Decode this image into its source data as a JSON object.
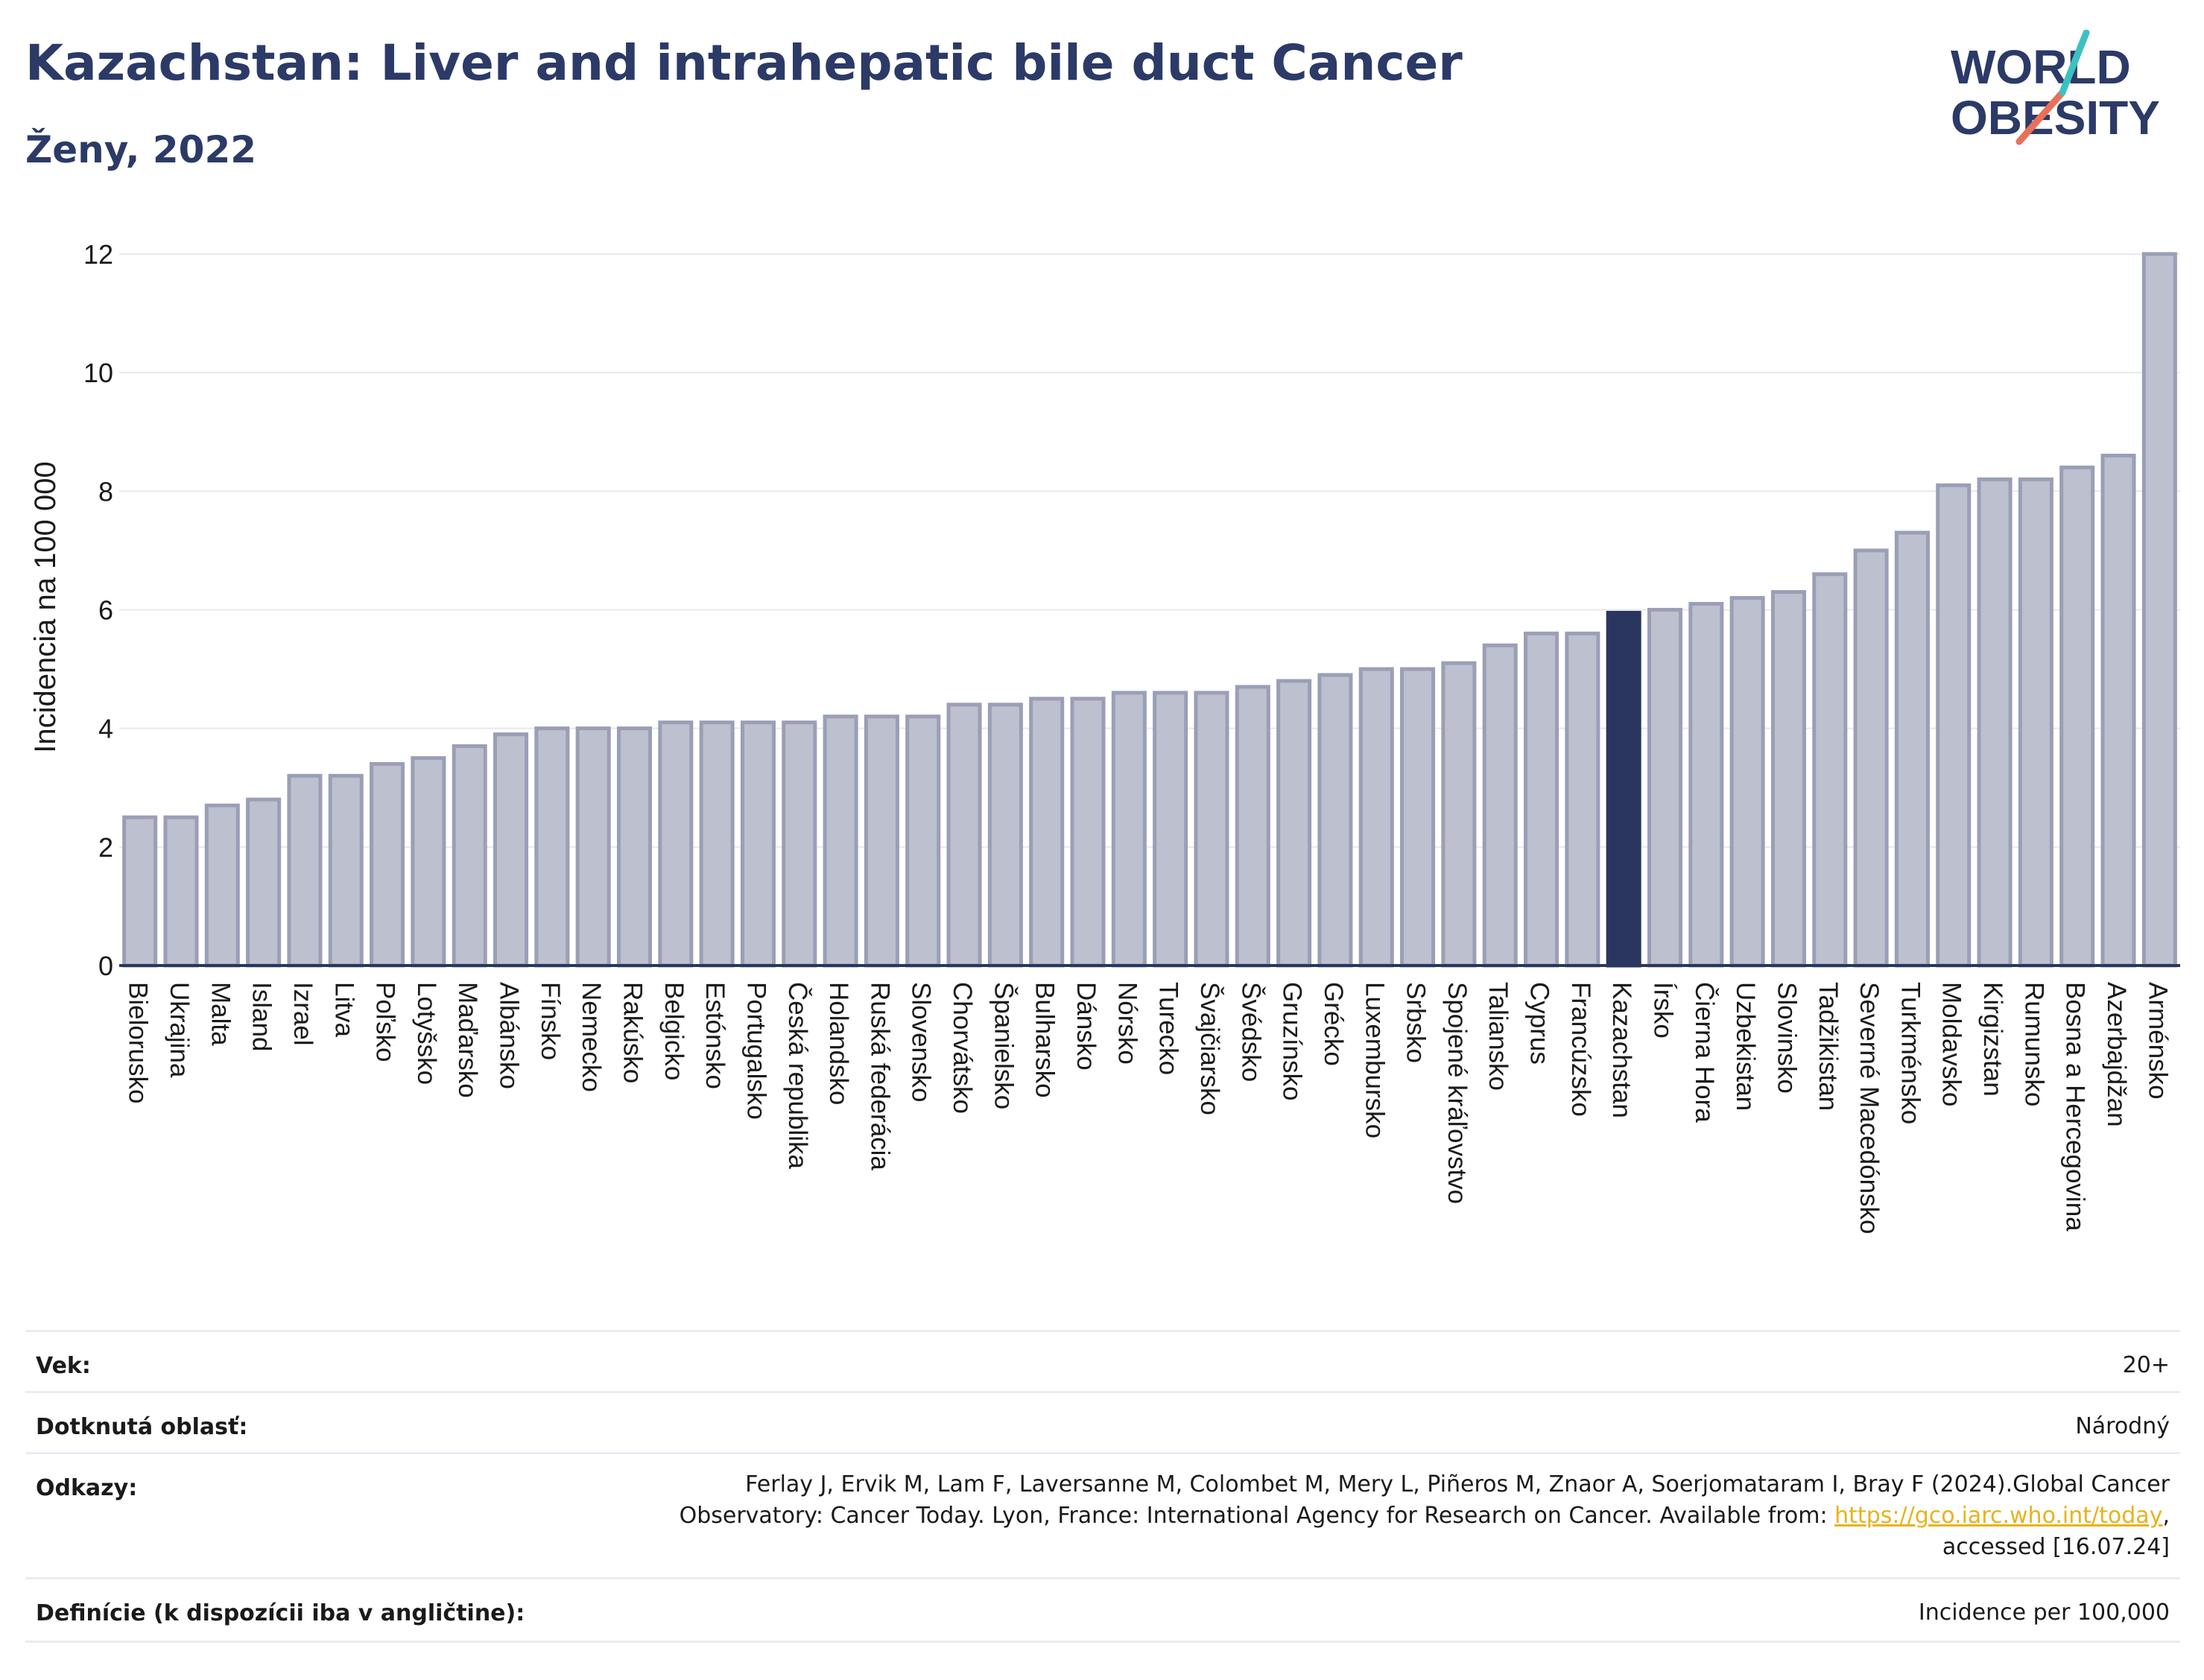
{
  "header": {
    "title": "Kazachstan: Liver and intrahepatic bile duct Cancer",
    "subtitle": "Ženy, 2022"
  },
  "logo": {
    "line1": "WORLD",
    "line2": "OBESITY",
    "accent_colors": [
      "#3cc1c1",
      "#e8705a"
    ],
    "text_color": "#2b3a67"
  },
  "chart_data": {
    "type": "bar",
    "title": "Kazachstan: Liver and intrahepatic bile duct Cancer",
    "subtitle": "Ženy, 2022",
    "ylabel": "Incidencia na 100 000",
    "xlabel": "",
    "ylim": [
      0,
      12.2
    ],
    "yticks": [
      0,
      2,
      4,
      6,
      8,
      10,
      12
    ],
    "grid": true,
    "highlight": "Kazachstan",
    "colors": {
      "bar": "#bcc0cf",
      "bar_edge": "#9a9fb6",
      "highlight": "#2b3660",
      "axis": "#2b3660"
    },
    "categories": [
      "Bielorusko",
      "Ukrajina",
      "Malta",
      "Island",
      "Izrael",
      "Litva",
      "Poľsko",
      "Lotyšsko",
      "Maďarsko",
      "Albánsko",
      "Fínsko",
      "Nemecko",
      "Rakúsko",
      "Belgicko",
      "Estónsko",
      "Portugalsko",
      "Česká republika",
      "Holandsko",
      "Ruská federácia",
      "Slovensko",
      "Chorvátsko",
      "Španielsko",
      "Bulharsko",
      "Dánsko",
      "Nórsko",
      "Turecko",
      "Švajčiarsko",
      "Švédsko",
      "Gruzínsko",
      "Grécko",
      "Luxembursko",
      "Srbsko",
      "Spojené kráľovstvo",
      "Taliansko",
      "Cyprus",
      "Francúzsko",
      "Kazachstan",
      "Írsko",
      "Čierna Hora",
      "Uzbekistan",
      "Slovinsko",
      "Tadžikistan",
      "Severné Macedónsko",
      "Turkménsko",
      "Moldavsko",
      "Kirgizstan",
      "Rumunsko",
      "Bosna a Hercegovina",
      "Azerbajdžan",
      "Arménsko"
    ],
    "values": [
      2.5,
      2.5,
      2.7,
      2.8,
      3.2,
      3.2,
      3.4,
      3.5,
      3.7,
      3.9,
      4.0,
      4.0,
      4.0,
      4.1,
      4.1,
      4.1,
      4.1,
      4.2,
      4.2,
      4.2,
      4.4,
      4.4,
      4.5,
      4.5,
      4.6,
      4.6,
      4.6,
      4.7,
      4.8,
      4.9,
      5.0,
      5.0,
      5.1,
      5.4,
      5.6,
      5.6,
      5.95,
      6.0,
      6.1,
      6.2,
      6.3,
      6.6,
      7.0,
      7.3,
      8.1,
      8.2,
      8.2,
      8.4,
      8.6,
      12.0
    ]
  },
  "meta": {
    "age_label": "Vek:",
    "age_value": "20+",
    "area_label": "Dotknutá oblasť:",
    "area_value": "Národný",
    "refs_label": "Odkazy:",
    "refs_line1": "Ferlay J, Ervik M, Lam F, Laversanne M, Colombet M, Mery L, Piñeros M, Znaor A, Soerjomataram I, Bray F (2024).Global Cancer",
    "refs_line2_pre": "Observatory: Cancer Today. Lyon, France: International Agency for Research on Cancer. Available from: ",
    "refs_link": "https://gco.iarc.who.int/today",
    "refs_line2_post": ",",
    "refs_line3": "accessed [16.07.24]",
    "defs_label": "Definície (k dispozícii iba v angličtine):",
    "defs_value": "Incidence per 100,000"
  }
}
